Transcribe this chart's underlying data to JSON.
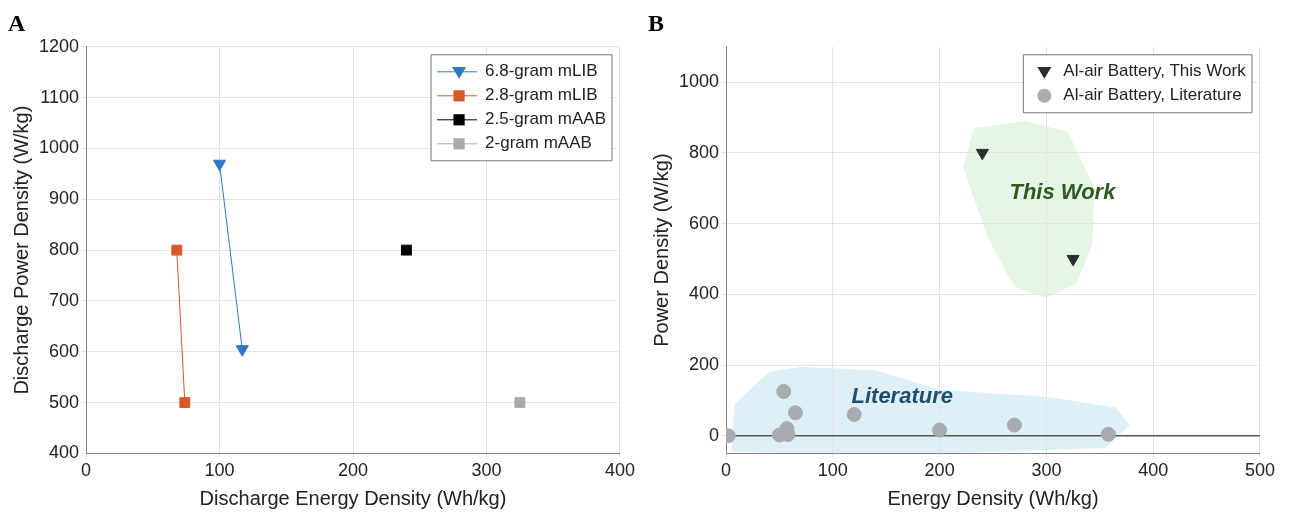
{
  "chart_data": [
    {
      "type": "line",
      "title": "A",
      "xlabel": "Discharge Energy Density (Wh/kg)",
      "ylabel": "Discharge Power Density (W/kg)",
      "xlim": [
        0,
        400
      ],
      "xticks": [
        0,
        100,
        200,
        300,
        400
      ],
      "ylim": [
        400,
        1200
      ],
      "yticks": [
        400,
        500,
        600,
        700,
        800,
        900,
        1000,
        1100,
        1200
      ],
      "grid": true,
      "legend": "top right",
      "line_style": "solid",
      "series": [
        {
          "name": "6.8-gram mLIB",
          "color": "#2e78c8",
          "marker": "triangle",
          "x": [
            100,
            117
          ],
          "values": [
            970,
            605
          ]
        },
        {
          "name": "2.8-gram mLIB",
          "color": "#d9582a",
          "marker": "square",
          "x": [
            68,
            74
          ],
          "values": [
            800,
            500
          ]
        },
        {
          "name": "2.5-gram mAAB",
          "color": "#000000",
          "marker": "square",
          "x": [
            240
          ],
          "values": [
            800
          ]
        },
        {
          "name": "2-gram mAAB",
          "color": "#aaaaaa",
          "marker": "square",
          "x": [
            325
          ],
          "values": [
            500
          ]
        }
      ]
    },
    {
      "type": "scatter",
      "title": "B",
      "xlabel": "Energy Density (Wh/kg)",
      "ylabel": "Power Density (W/kg)",
      "xlim": [
        0,
        500
      ],
      "xticks": [
        0,
        100,
        200,
        300,
        400,
        500
      ],
      "ylim": [
        -50,
        1100
      ],
      "yticks": [
        0,
        200,
        400,
        600,
        800,
        1000
      ],
      "grid": true,
      "legend": "top right",
      "ref_lines": [
        {
          "axis": "y",
          "value": 0,
          "color": "#555555"
        }
      ],
      "annotations": [
        "This Work",
        "Literature"
      ],
      "series": [
        {
          "name": "Al-air Battery, This Work",
          "color": "#2b2f2b",
          "marker": "triangle",
          "x": [
            240,
            325
          ],
          "values": [
            800,
            500
          ]
        },
        {
          "name": "Al-air Battery, Literature",
          "color": "#a8acae",
          "marker": "circle",
          "x": [
            2,
            54,
            65,
            120,
            57,
            50,
            58,
            200,
            270,
            358
          ],
          "values": [
            0,
            125,
            65,
            60,
            20,
            2,
            3,
            16,
            30,
            4
          ]
        }
      ]
    }
  ]
}
